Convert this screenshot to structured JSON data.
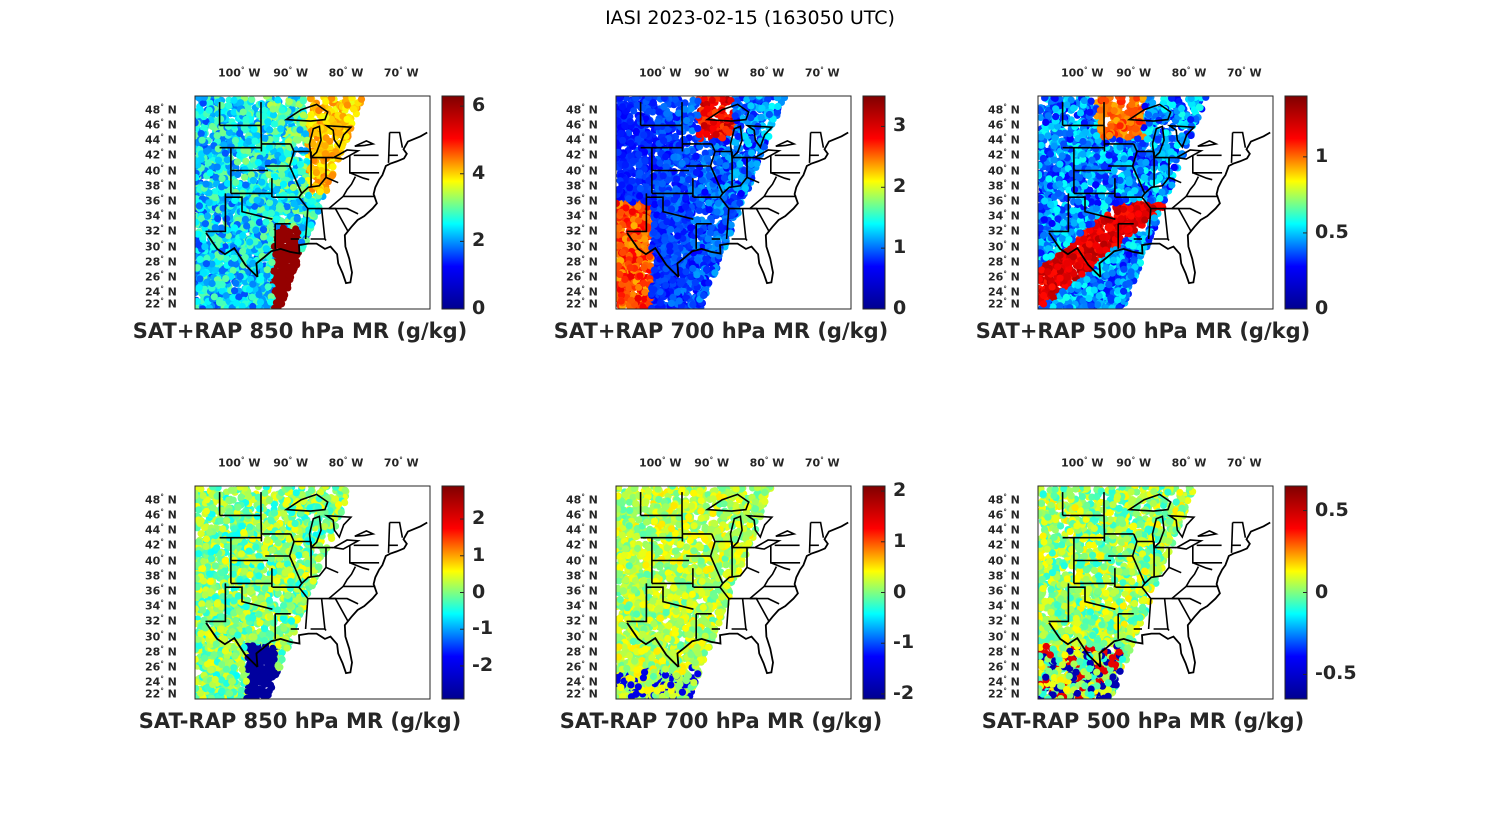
{
  "title": "IASI 2023-02-15 (163050 UTC)",
  "lon_ticks": [
    "100",
    "90",
    "80",
    "70"
  ],
  "lon_hemisphere": "W",
  "lat_ticks": [
    "48",
    "46",
    "44",
    "42",
    "40",
    "38",
    "36",
    "34",
    "32",
    "30",
    "28",
    "26",
    "24",
    "22"
  ],
  "lat_hemisphere": "N",
  "degree_symbol": "°",
  "colormap": "jet",
  "panels": [
    {
      "title": "SAT+RAP 850 hPa MR (g/kg)",
      "clim": [
        0,
        6.3
      ],
      "colorbar_ticks": [
        "6",
        "4",
        "2",
        "0"
      ],
      "colorbar_values": [
        6,
        4,
        2,
        0
      ]
    },
    {
      "title": "SAT+RAP 700 hPa MR (g/kg)",
      "clim": [
        0,
        3.5
      ],
      "colorbar_ticks": [
        "3",
        "2",
        "1",
        "0"
      ],
      "colorbar_values": [
        3,
        2,
        1,
        0
      ]
    },
    {
      "title": "SAT+RAP 500 hPa MR (g/kg)",
      "clim": [
        0,
        1.4
      ],
      "colorbar_ticks": [
        "1",
        "0.5",
        "0"
      ],
      "colorbar_values": [
        1,
        0.5,
        0
      ]
    },
    {
      "title": "SAT-RAP 850 hPa MR (g/kg)",
      "clim": [
        -2.9,
        2.9
      ],
      "colorbar_ticks": [
        "2",
        "1",
        "0",
        "-1",
        "-2"
      ],
      "colorbar_values": [
        2,
        1,
        0,
        -1,
        -2
      ]
    },
    {
      "title": "SAT-RAP 700 hPa MR (g/kg)",
      "clim": [
        -2.1,
        2.1
      ],
      "colorbar_ticks": [
        "2",
        "1",
        "0",
        "-1",
        "-2"
      ],
      "colorbar_values": [
        2,
        1,
        0,
        -1,
        -2
      ]
    },
    {
      "title": "SAT-RAP 500 hPa MR (g/kg)",
      "clim": [
        -0.65,
        0.65
      ],
      "colorbar_ticks": [
        "0.5",
        "0",
        "-0.5"
      ],
      "colorbar_values": [
        0.5,
        0,
        -0.5
      ]
    }
  ]
}
